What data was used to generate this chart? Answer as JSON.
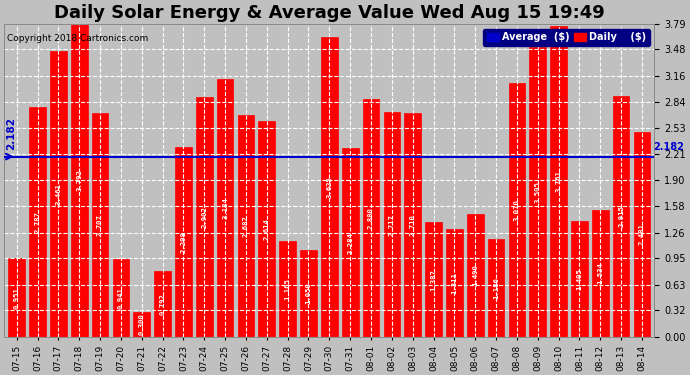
{
  "title": "Daily Solar Energy & Average Value Wed Aug 15 19:49",
  "copyright": "Copyright 2018 Cartronics.com",
  "categories": [
    "07-15",
    "07-16",
    "07-17",
    "07-18",
    "07-19",
    "07-20",
    "07-21",
    "07-22",
    "07-23",
    "07-24",
    "07-25",
    "07-26",
    "07-27",
    "07-28",
    "07-29",
    "07-30",
    "07-31",
    "08-01",
    "08-02",
    "08-03",
    "08-04",
    "08-05",
    "08-06",
    "08-07",
    "08-08",
    "08-09",
    "08-10",
    "08-11",
    "08-12",
    "08-13",
    "08-14"
  ],
  "values": [
    0.951,
    2.787,
    3.461,
    3.792,
    2.707,
    0.941,
    0.3,
    0.792,
    2.298,
    2.902,
    3.124,
    2.682,
    2.614,
    1.165,
    1.05,
    3.625,
    2.284,
    2.88,
    2.717,
    2.71,
    1.387,
    1.311,
    1.49,
    1.186,
    3.07,
    3.505,
    3.761,
    1.405,
    1.534,
    2.915,
    2.481
  ],
  "average_line": 2.182,
  "average_label": "2.182",
  "last_value_label": "2.182",
  "bar_color": "#ff0000",
  "bar_edge_color": "#ff0000",
  "avg_line_color": "#0000cc",
  "ylim": [
    0,
    3.79
  ],
  "yticks": [
    0.0,
    0.32,
    0.63,
    0.95,
    1.26,
    1.58,
    1.9,
    2.21,
    2.53,
    2.84,
    3.16,
    3.48,
    3.79
  ],
  "background_color": "#c0c0c0",
  "plot_bg_color": "#c0c0c0",
  "grid_color": "#ffffff",
  "title_fontsize": 13,
  "legend_avg_color": "#0000cc",
  "legend_daily_color": "#ff0000",
  "legend_text_color": "#ffffff",
  "avg_label_value": "2.182",
  "right_label_value": "2.182"
}
